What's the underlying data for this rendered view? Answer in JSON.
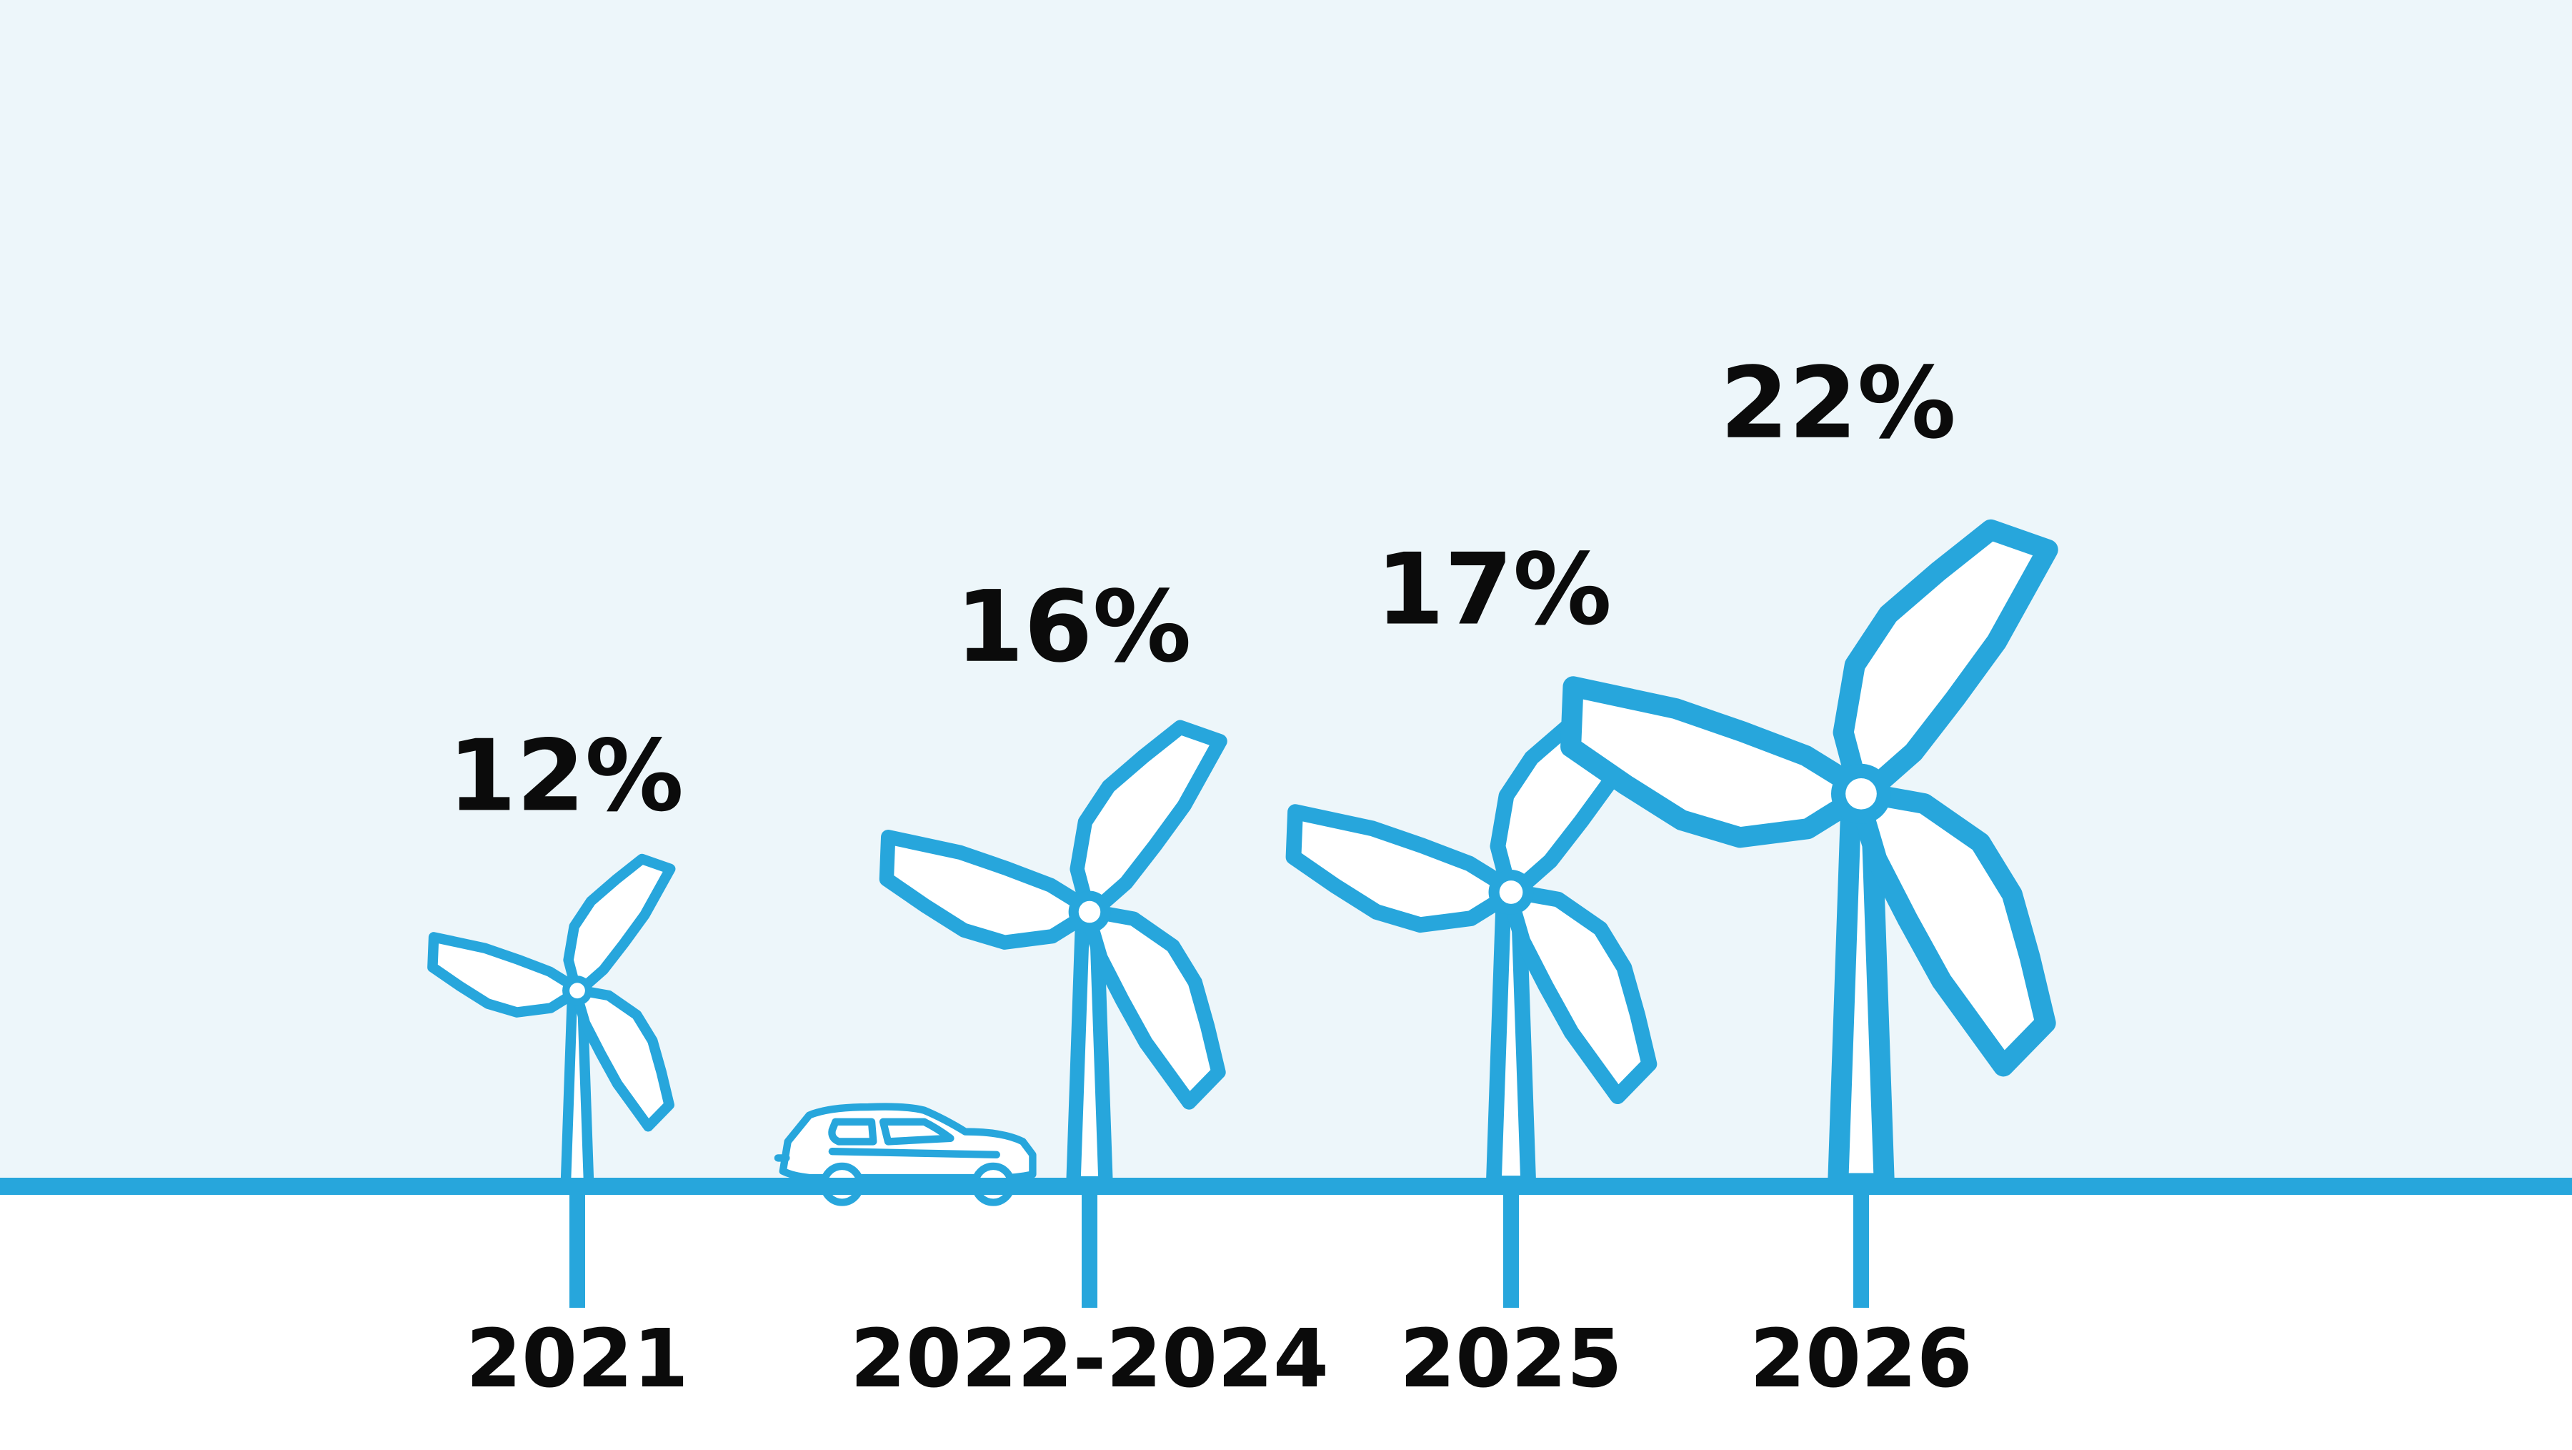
{
  "chart_data": {
    "type": "bar",
    "style": "pictogram-wind-turbines",
    "categories": [
      "2021",
      "2022-2024",
      "2025",
      "2026"
    ],
    "values": [
      12,
      16,
      17,
      22
    ],
    "value_labels": [
      "12%",
      "16%",
      "17%",
      "22%"
    ],
    "unit": "%",
    "grid": false,
    "legend": "none",
    "decoration": "car-icon"
  },
  "colors": {
    "accent": "#27a6dc",
    "sky": "#edf6fa",
    "ground": "#ffffff",
    "text": "#0b0b0b"
  }
}
